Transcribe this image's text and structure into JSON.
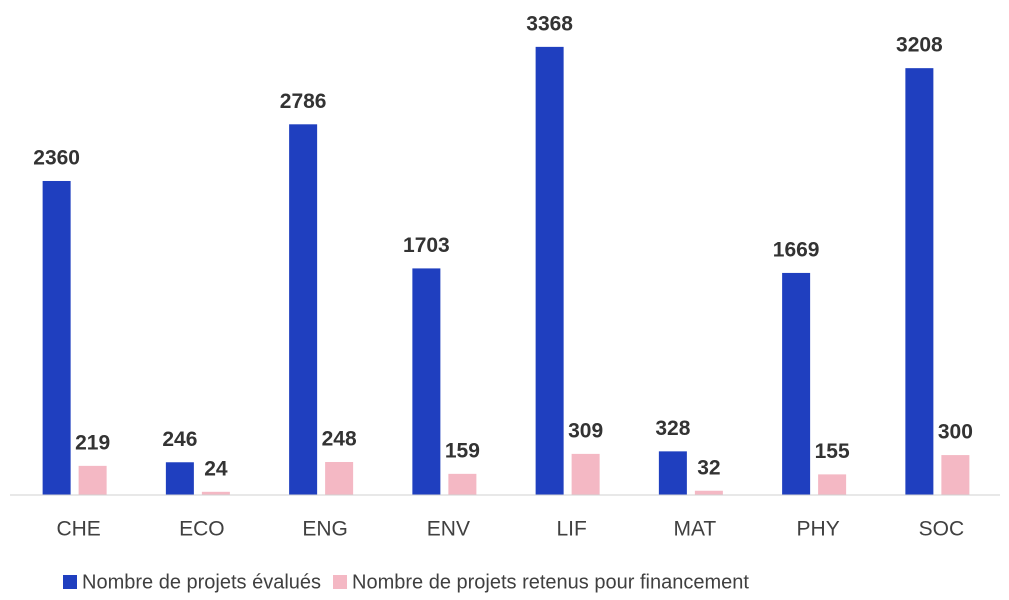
{
  "chart_data": {
    "type": "bar",
    "categories": [
      "CHE",
      "ECO",
      "ENG",
      "ENV",
      "LIF",
      "MAT",
      "PHY",
      "SOC"
    ],
    "series": [
      {
        "name": "Nombre de projets évalués",
        "color": "#1f3fbf",
        "values": [
          2360,
          246,
          2786,
          1703,
          3368,
          328,
          1669,
          3208
        ]
      },
      {
        "name": "Nombre de projets retenus pour financement",
        "color": "#f4b8c4",
        "values": [
          219,
          24,
          248,
          159,
          309,
          32,
          155,
          300
        ]
      }
    ],
    "ylim": [
      0,
      3600
    ],
    "legend": "bottom",
    "grid": false
  }
}
